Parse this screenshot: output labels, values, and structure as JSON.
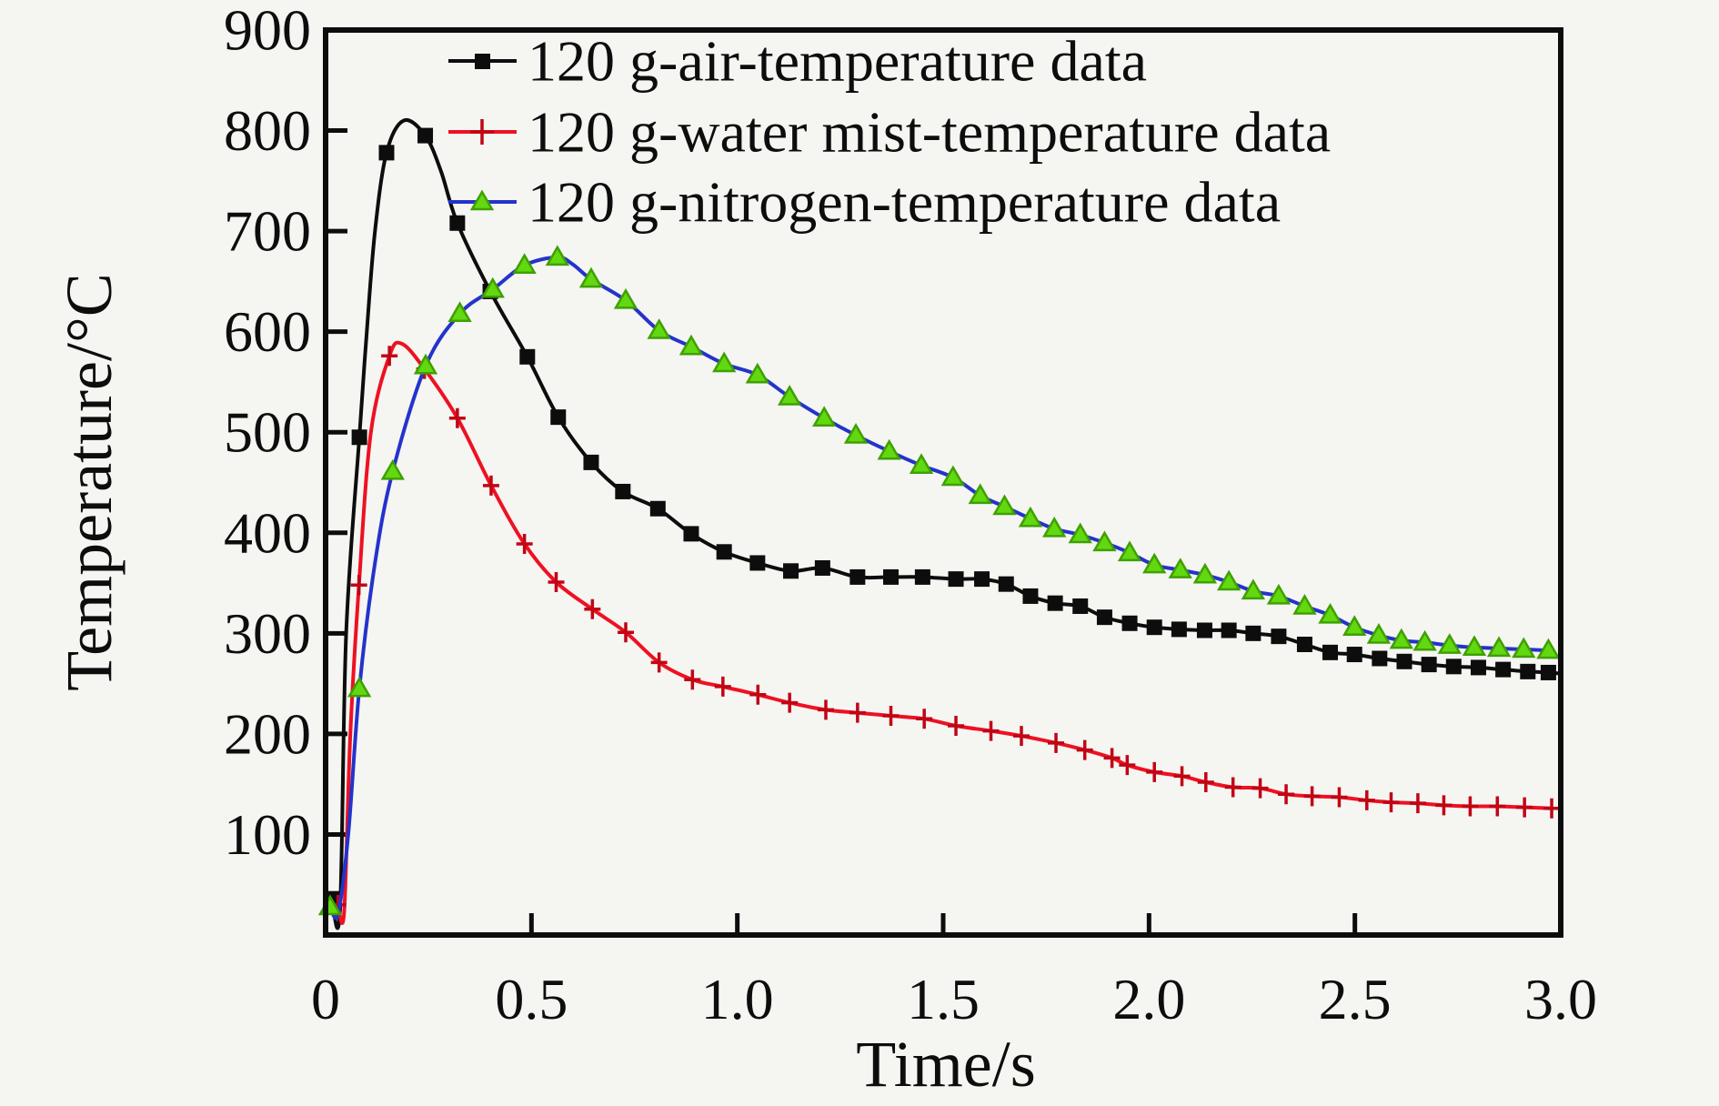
{
  "figure": {
    "background": "#f5f5f2",
    "frame_color": "#0d0d0d"
  },
  "chart_data": {
    "type": "line",
    "title": "",
    "xlabel": "Time/s",
    "ylabel": "Temperature/°C",
    "xlim": [
      0,
      3.0
    ],
    "ylim": [
      0,
      900
    ],
    "grid": false,
    "legend_position": "top-inside",
    "x_ticks": {
      "values": [
        0,
        0.5,
        1.0,
        1.5,
        2.0,
        2.5,
        3.0
      ],
      "labels": [
        "0",
        "0.5",
        "1.0",
        "1.5",
        "2.0",
        "2.5",
        "3.0"
      ]
    },
    "y_ticks": {
      "values": [
        100,
        200,
        300,
        400,
        500,
        600,
        700,
        800,
        900
      ],
      "labels": [
        "100",
        "200",
        "300",
        "400",
        "500",
        "600",
        "700",
        "800",
        "900"
      ]
    },
    "series": [
      {
        "name": "120 g-air-temperature data",
        "color": "#0d0d0d",
        "marker": "square",
        "marker_color": "#0d0d0d",
        "marker_edge": "#0d0d0d",
        "points": [
          [
            0.015,
            36,
            1
          ],
          [
            0.035,
            24,
            0
          ],
          [
            0.05,
            300,
            0
          ],
          [
            0.082,
            495,
            1
          ],
          [
            0.1,
            600,
            0
          ],
          [
            0.12,
            700,
            0
          ],
          [
            0.148,
            778,
            1
          ],
          [
            0.19,
            810,
            0
          ],
          [
            0.242,
            795,
            1
          ],
          [
            0.28,
            760,
            0
          ],
          [
            0.32,
            708,
            1
          ],
          [
            0.4,
            640,
            1
          ],
          [
            0.49,
            575,
            1
          ],
          [
            0.565,
            515,
            1
          ],
          [
            0.645,
            470,
            1
          ],
          [
            0.722,
            441,
            1
          ],
          [
            0.807,
            424,
            1
          ],
          [
            0.888,
            399,
            1
          ],
          [
            0.968,
            381,
            1
          ],
          [
            1.049,
            370,
            1
          ],
          [
            1.13,
            362,
            1
          ],
          [
            1.207,
            365,
            1
          ],
          [
            1.292,
            356,
            1
          ],
          [
            1.373,
            356,
            1
          ],
          [
            1.45,
            356,
            1
          ],
          [
            1.531,
            354,
            1
          ],
          [
            1.594,
            354,
            1
          ],
          [
            1.653,
            349,
            1
          ],
          [
            1.712,
            337,
            1
          ],
          [
            1.772,
            330,
            1
          ],
          [
            1.833,
            327,
            1
          ],
          [
            1.892,
            316,
            1
          ],
          [
            1.953,
            310,
            1
          ],
          [
            2.013,
            306,
            1
          ],
          [
            2.073,
            304,
            1
          ],
          [
            2.135,
            303,
            1
          ],
          [
            2.194,
            303,
            1
          ],
          [
            2.253,
            300,
            1
          ],
          [
            2.315,
            297,
            1
          ],
          [
            2.378,
            289,
            1
          ],
          [
            2.44,
            281,
            1
          ],
          [
            2.499,
            279,
            1
          ],
          [
            2.56,
            275,
            1
          ],
          [
            2.62,
            272,
            1
          ],
          [
            2.68,
            269,
            1
          ],
          [
            2.74,
            267,
            1
          ],
          [
            2.8,
            266,
            1
          ],
          [
            2.86,
            264,
            1
          ],
          [
            2.92,
            262,
            1
          ],
          [
            2.97,
            261,
            1
          ],
          [
            3.0,
            260,
            0
          ]
        ]
      },
      {
        "name": "120 g-water mist-temperature data",
        "color": "#ee1122",
        "marker": "plus",
        "marker_color": "#c00515",
        "marker_edge": "#c00515",
        "points": [
          [
            0.03,
            30,
            1
          ],
          [
            0.045,
            23,
            0
          ],
          [
            0.06,
            200,
            0
          ],
          [
            0.081,
            348,
            1
          ],
          [
            0.11,
            500,
            0
          ],
          [
            0.155,
            576,
            1
          ],
          [
            0.185,
            588,
            0
          ],
          [
            0.24,
            563,
            1
          ],
          [
            0.32,
            514,
            1
          ],
          [
            0.402,
            447,
            1
          ],
          [
            0.483,
            389,
            1
          ],
          [
            0.56,
            351,
            1
          ],
          [
            0.648,
            324,
            1
          ],
          [
            0.729,
            301,
            1
          ],
          [
            0.81,
            271,
            1
          ],
          [
            0.891,
            254,
            1
          ],
          [
            0.965,
            247,
            1
          ],
          [
            1.05,
            239,
            1
          ],
          [
            1.127,
            231,
            1
          ],
          [
            1.215,
            224,
            1
          ],
          [
            1.292,
            221,
            1
          ],
          [
            1.373,
            218,
            1
          ],
          [
            1.454,
            215,
            1
          ],
          [
            1.531,
            208,
            1
          ],
          [
            1.616,
            203,
            1
          ],
          [
            1.69,
            198,
            1
          ],
          [
            1.774,
            191,
            1
          ],
          [
            1.844,
            184,
            1
          ],
          [
            1.91,
            176,
            1
          ],
          [
            1.947,
            169,
            1
          ],
          [
            2.013,
            162,
            1
          ],
          [
            2.08,
            158,
            1
          ],
          [
            2.138,
            152,
            1
          ],
          [
            2.204,
            147,
            1
          ],
          [
            2.27,
            146,
            1
          ],
          [
            2.333,
            140,
            1
          ],
          [
            2.396,
            138,
            1
          ],
          [
            2.462,
            137,
            1
          ],
          [
            2.529,
            134,
            1
          ],
          [
            2.588,
            132,
            1
          ],
          [
            2.653,
            131,
            1
          ],
          [
            2.716,
            129,
            1
          ],
          [
            2.78,
            128,
            1
          ],
          [
            2.846,
            128,
            1
          ],
          [
            2.912,
            127,
            1
          ],
          [
            2.978,
            126,
            1
          ]
        ]
      },
      {
        "name": "120 g-nitrogen-temperature data",
        "color": "#2433cb",
        "marker": "triangle",
        "marker_color": "#62d811",
        "marker_edge": "#3fa000",
        "points": [
          [
            0.011,
            28,
            1
          ],
          [
            0.03,
            21,
            0
          ],
          [
            0.055,
            100,
            0
          ],
          [
            0.082,
            245,
            1
          ],
          [
            0.12,
            370,
            0
          ],
          [
            0.163,
            461,
            1
          ],
          [
            0.243,
            566,
            1
          ],
          [
            0.326,
            618,
            1
          ],
          [
            0.406,
            642,
            1
          ],
          [
            0.483,
            666,
            1
          ],
          [
            0.563,
            674,
            1
          ],
          [
            0.6,
            667,
            0
          ],
          [
            0.645,
            652,
            1
          ],
          [
            0.729,
            631,
            1
          ],
          [
            0.81,
            601,
            1
          ],
          [
            0.888,
            585,
            1
          ],
          [
            0.968,
            568,
            1
          ],
          [
            1.049,
            557,
            1
          ],
          [
            1.127,
            535,
            1
          ],
          [
            1.211,
            514,
            1
          ],
          [
            1.288,
            497,
            1
          ],
          [
            1.369,
            481,
            1
          ],
          [
            1.447,
            467,
            1
          ],
          [
            1.524,
            455,
            1
          ],
          [
            1.59,
            437,
            1
          ],
          [
            1.649,
            426,
            1
          ],
          [
            1.712,
            414,
            1
          ],
          [
            1.77,
            404,
            1
          ],
          [
            1.833,
            398,
            1
          ],
          [
            1.892,
            390,
            1
          ],
          [
            1.953,
            380,
            1
          ],
          [
            2.013,
            368,
            1
          ],
          [
            2.076,
            363,
            1
          ],
          [
            2.136,
            358,
            1
          ],
          [
            2.194,
            351,
            1
          ],
          [
            2.253,
            342,
            1
          ],
          [
            2.315,
            337,
            1
          ],
          [
            2.378,
            327,
            1
          ],
          [
            2.44,
            318,
            1
          ],
          [
            2.499,
            306,
            1
          ],
          [
            2.558,
            298,
            1
          ],
          [
            2.613,
            293,
            1
          ],
          [
            2.67,
            291,
            1
          ],
          [
            2.73,
            288,
            1
          ],
          [
            2.79,
            286,
            1
          ],
          [
            2.85,
            285,
            1
          ],
          [
            2.91,
            284,
            1
          ],
          [
            2.97,
            283,
            1
          ]
        ]
      }
    ]
  }
}
